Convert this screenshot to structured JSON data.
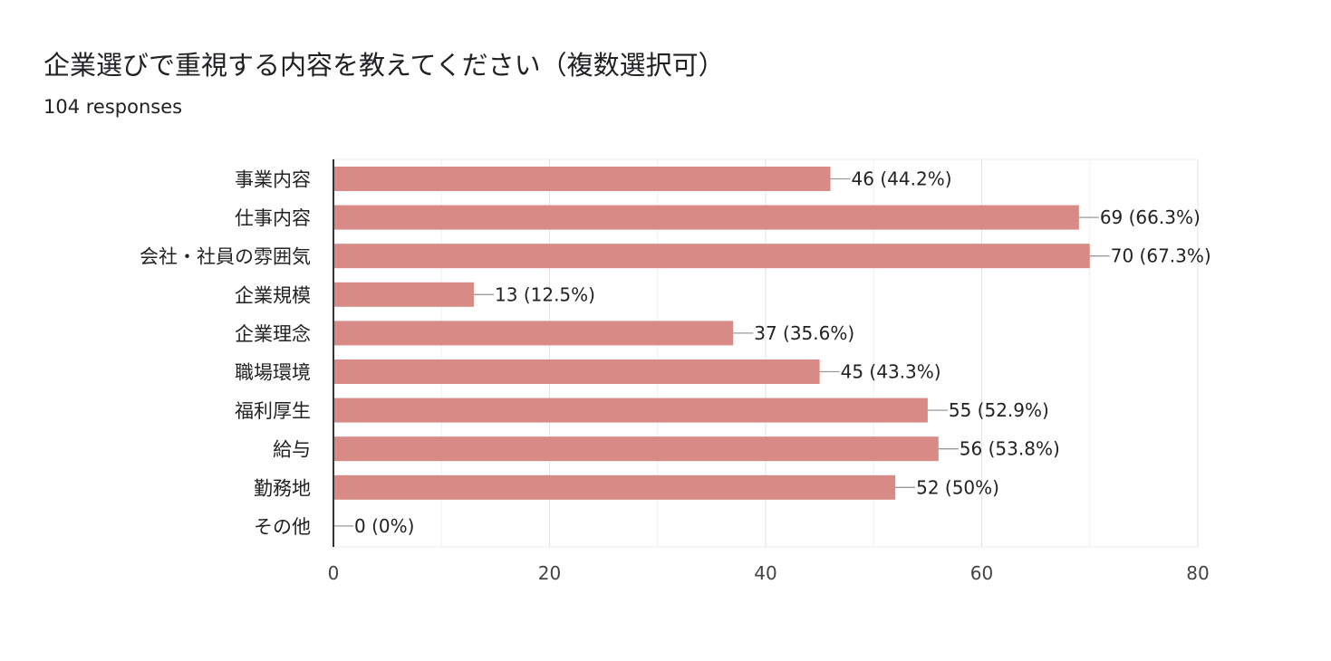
{
  "header": {
    "title": "企業選びで重視する内容を教えてください（複数選択可）",
    "responses": "104 responses"
  },
  "chart_data": {
    "type": "bar",
    "orientation": "horizontal",
    "title": "企業選びで重視する内容を教えてください（複数選択可）",
    "subtitle": "104 responses",
    "categories": [
      "事業内容",
      "仕事内容",
      "会社・社員の雰囲気",
      "企業規模",
      "企業理念",
      "職場環境",
      "福利厚生",
      "給与",
      "勤務地",
      "その他"
    ],
    "values": [
      46,
      69,
      70,
      13,
      37,
      45,
      55,
      56,
      52,
      0
    ],
    "value_labels": [
      "46 (44.2%)",
      "69 (66.3%)",
      "70 (67.3%)",
      "13 (12.5%)",
      "37 (35.6%)",
      "45 (43.3%)",
      "55 (52.9%)",
      "56 (53.8%)",
      "52 (50%)",
      "0 (0%)"
    ],
    "xlim": [
      0,
      80
    ],
    "xticks": [
      0,
      20,
      40,
      60,
      80
    ],
    "xlabel": "",
    "ylabel": "",
    "grid": true,
    "bar_color": "#d88b86"
  }
}
